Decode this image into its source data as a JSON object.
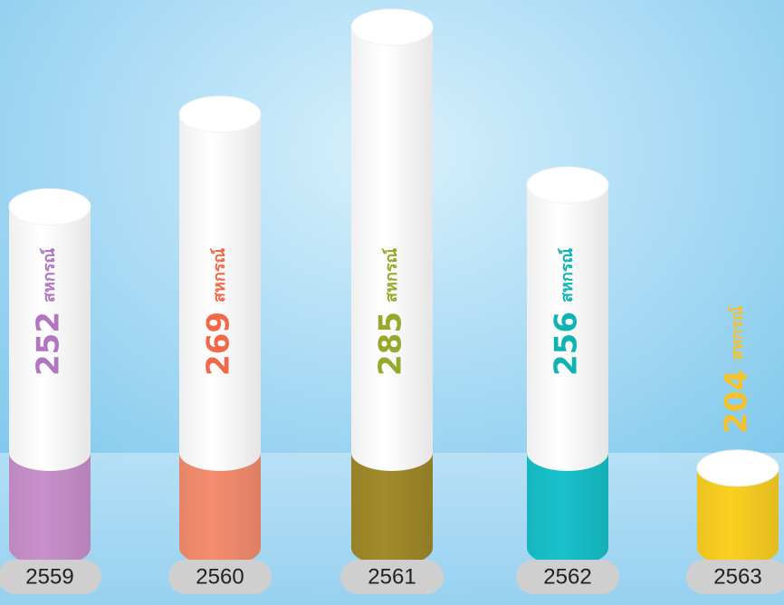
{
  "chart_data": {
    "type": "bar",
    "categories": [
      "2559",
      "2560",
      "2561",
      "2562",
      "2563"
    ],
    "values": [
      252,
      269,
      285,
      256,
      204
    ],
    "unit": "สหกรณ์",
    "colors": [
      "#c990cb",
      "#f58d6f",
      "#a18a2b",
      "#18c1cb",
      "#fbd022"
    ],
    "label_colors": [
      "#b276c0",
      "#f0694a",
      "#98a82a",
      "#10b3b3",
      "#f4c22b"
    ],
    "ylim": [
      186,
      286
    ]
  }
}
